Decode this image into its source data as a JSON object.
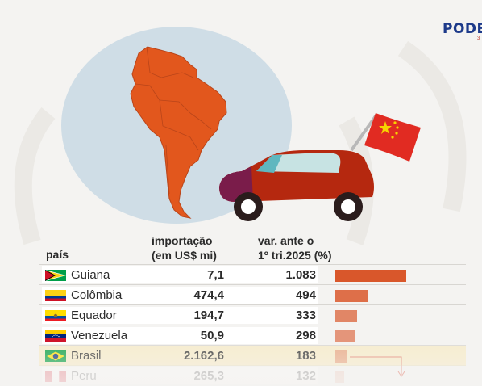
{
  "brand": {
    "name": "PODER",
    "sub": "3"
  },
  "headers": {
    "country": "país",
    "import_line1": "importação",
    "import_line2": "(em US$ mi)",
    "var_line1": "var. ante o",
    "var_line2": "1º tri.2025 (%)"
  },
  "colors": {
    "bar": "#d9572b",
    "map": "#e2571d",
    "car": "#b5280f",
    "highlight": "#f7ecc8"
  },
  "chart_data": {
    "type": "table",
    "columns": [
      "país",
      "importação (em US$ mi)",
      "var. ante o 1º tri.2025 (%)"
    ],
    "rows": [
      {
        "country": "Guiana",
        "import": "7,1",
        "variation": "1.083",
        "variation_value": 1083,
        "flag": "guyana-flag"
      },
      {
        "country": "Colômbia",
        "import": "474,4",
        "variation": "494",
        "variation_value": 494,
        "flag": "colombia-flag"
      },
      {
        "country": "Equador",
        "import": "194,7",
        "variation": "333",
        "variation_value": 333,
        "flag": "ecuador-flag"
      },
      {
        "country": "Venezuela",
        "import": "50,9",
        "variation": "298",
        "variation_value": 298,
        "flag": "venezuela-flag"
      },
      {
        "country": "Brasil",
        "import": "2.162,6",
        "variation": "183",
        "variation_value": 183,
        "flag": "brazil-flag",
        "highlighted": true
      },
      {
        "country": "Peru",
        "import": "265,3",
        "variation": "132",
        "variation_value": 132,
        "flag": "peru-flag"
      }
    ],
    "bar_max": 1083
  }
}
